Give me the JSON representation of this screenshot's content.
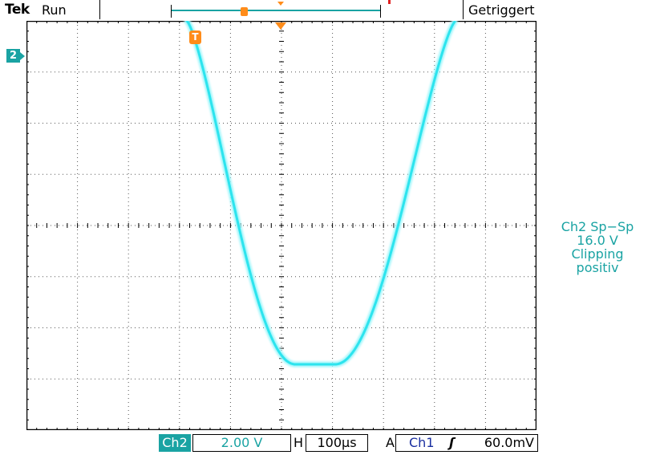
{
  "header": {
    "brand": "Tek",
    "run_state": "Run",
    "trigger_status": "Getriggert"
  },
  "markers": {
    "trigger_marker": "T",
    "channel_marker": "2"
  },
  "measurement": {
    "line1": "Ch2 Sp−Sp",
    "line2": "16.0 V",
    "line3": "Clipping",
    "line4": "positiv"
  },
  "status_bar": {
    "channel": "Ch2",
    "volts_per_div": "2.00 V",
    "horizontal_label": "H",
    "time_per_div": "100µs",
    "acquire_label": "A",
    "trigger_source": "Ch1",
    "trigger_slope": "ʃ",
    "trigger_level": "60.0mV"
  },
  "colors": {
    "waveform": "#33e6ee",
    "channel": "#1aa3a3",
    "trigger": "#ff8c1a",
    "trigger_source": "#1a2fa0"
  }
}
